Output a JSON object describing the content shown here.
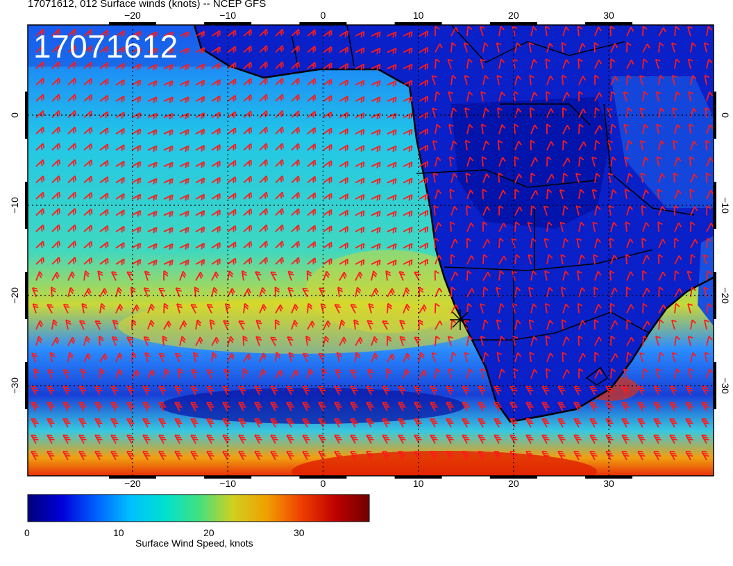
{
  "title": "17071612, 012 Surface winds (knots) -- NCEP GFS",
  "run_label": "17071612",
  "map": {
    "lon_range": [
      -31,
      41
    ],
    "lat_range": [
      -40,
      10
    ],
    "lon_ticks": [
      "−20",
      "−10",
      "0",
      "10",
      "20",
      "30"
    ],
    "lat_ticks": [
      "0",
      "−10",
      "−20",
      "−30"
    ],
    "ocean_low_wind_region": "Gulf of Guinea and interior Africa",
    "marker": "star marker near Walvis Bay, Namibia",
    "barb_color": "#ff1a1a"
  },
  "colorbar": {
    "title": "Surface Wind Speed, knots",
    "tick_labels": [
      "0",
      "10",
      "20",
      "30"
    ],
    "range": [
      0,
      38
    ],
    "colors": [
      "#00007a",
      "#0000d9",
      "#0060ff",
      "#00c0ff",
      "#00e0d0",
      "#40e080",
      "#d0d020",
      "#f0a000",
      "#f04000",
      "#c00000",
      "#700000"
    ]
  }
}
